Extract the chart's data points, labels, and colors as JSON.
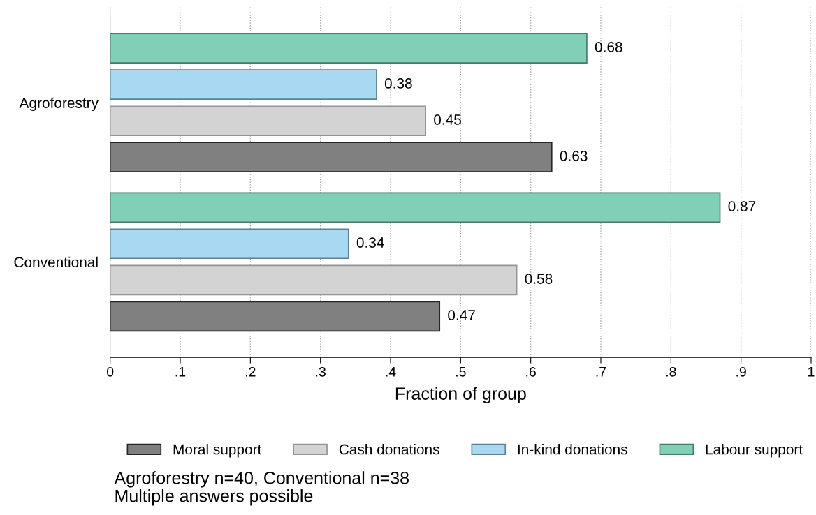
{
  "chart_data": {
    "type": "bar",
    "orientation": "horizontal",
    "categories": [
      "Agroforestry",
      "Conventional"
    ],
    "series": [
      {
        "name": "Moral support",
        "color": "#808080",
        "values": [
          0.63,
          0.47
        ]
      },
      {
        "name": "Cash donations",
        "color": "#d3d3d3",
        "values": [
          0.45,
          0.58
        ]
      },
      {
        "name": "In-kind donations",
        "color": "#a8d8f2",
        "values": [
          0.38,
          0.34
        ]
      },
      {
        "name": "Labour support",
        "color": "#80cfb6",
        "values": [
          0.68,
          0.87
        ]
      }
    ],
    "xlabel": "Fraction of group",
    "xlim": [
      0,
      1
    ],
    "xticks": [
      0,
      {
        "value": 0.1,
        "label": ".1"
      },
      {
        "value": 0.2,
        "label": ".2"
      },
      {
        "value": 0.3,
        "label": ".3"
      },
      {
        "value": 0.4,
        "label": ".4"
      },
      {
        "value": 0.5,
        "label": ".5"
      },
      {
        "value": 0.6,
        "label": ".6"
      },
      {
        "value": 0.7,
        "label": ".7"
      },
      {
        "value": 0.8,
        "label": ".8"
      },
      {
        "value": 0.9,
        "label": ".9"
      },
      1
    ],
    "grid": "x",
    "legend": "bottom",
    "data_labels": true,
    "annotations": [
      "Agroforestry n=40, Conventional n=38",
      "Multiple answers possible"
    ]
  }
}
